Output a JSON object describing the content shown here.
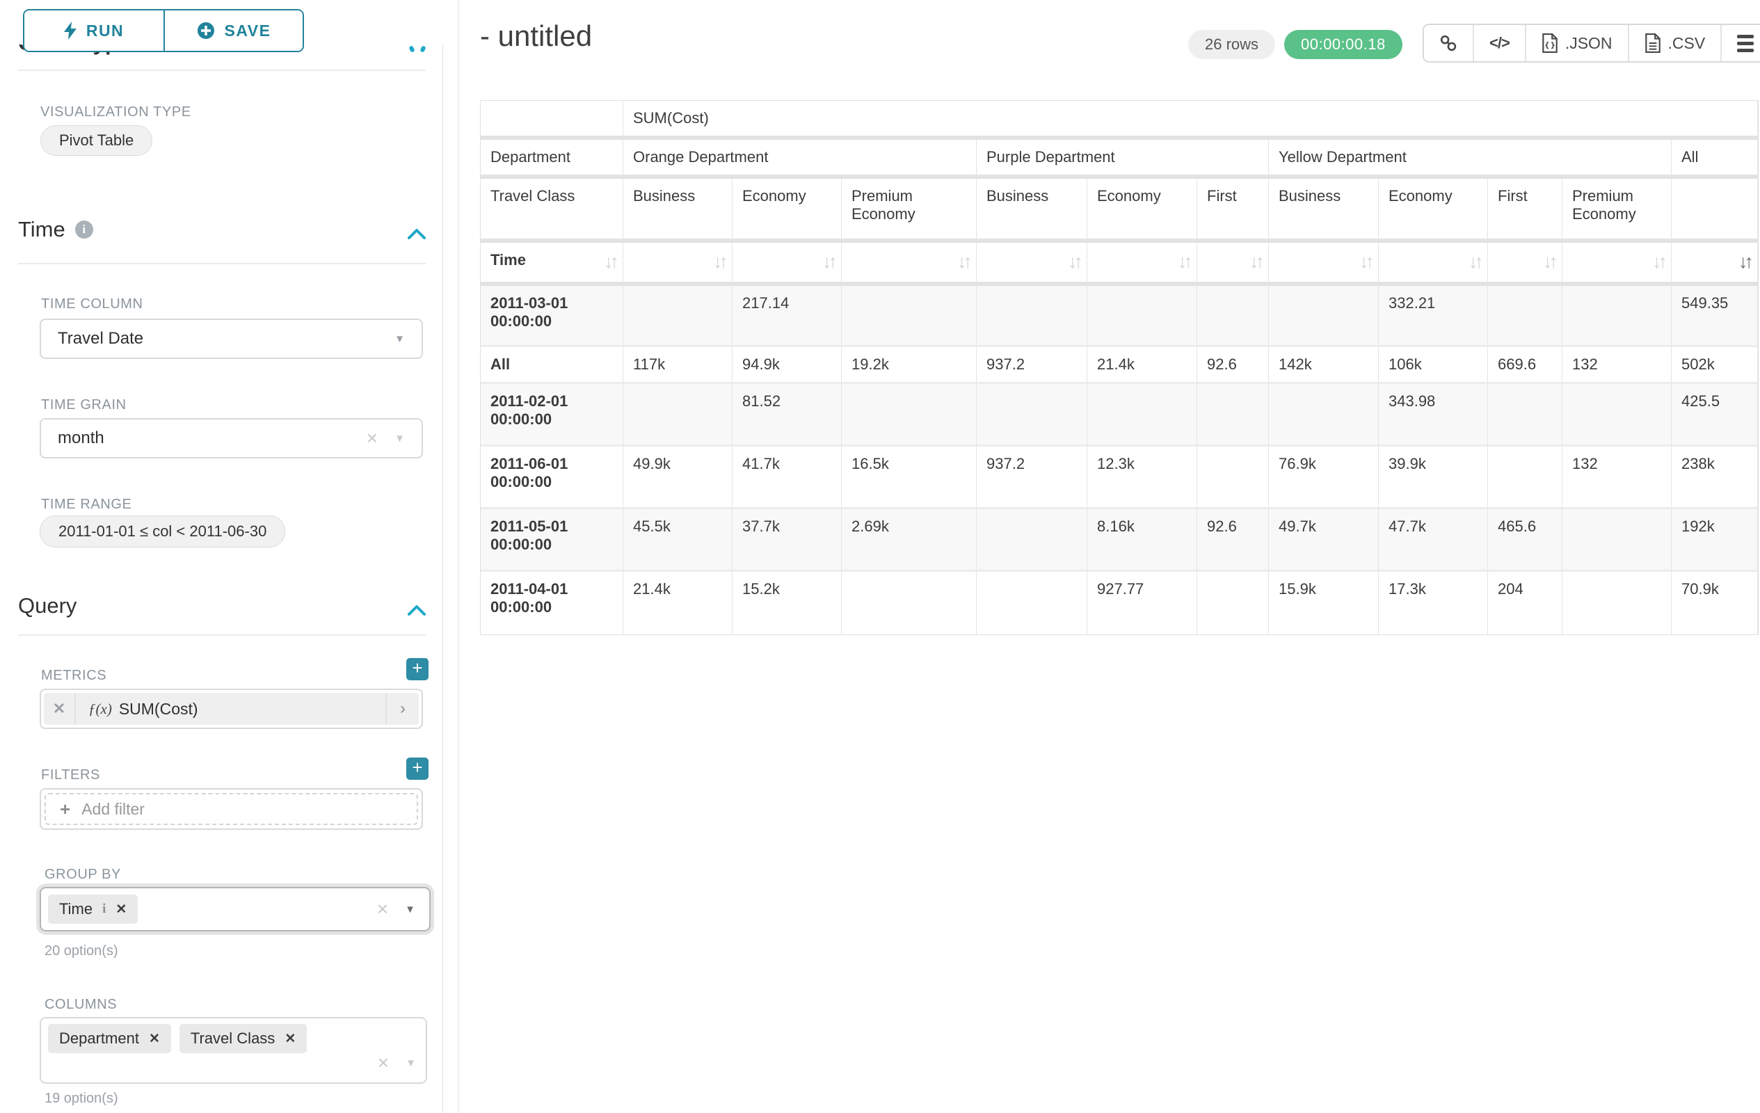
{
  "colors": {
    "accent_teal": "#20839b",
    "chevron_teal": "#1fa8c9",
    "success_green": "#5ac189",
    "chip_gray": "#f1f1f1"
  },
  "sidebar": {
    "run_label": "RUN",
    "save_label": "SAVE",
    "chart_type_heading": "Chart Type",
    "viz_type_label": "VISUALIZATION TYPE",
    "viz_type_value": "Pivot Table",
    "time_section_label": "Time",
    "time_column_label": "TIME COLUMN",
    "time_column_value": "Travel Date",
    "time_grain_label": "TIME GRAIN",
    "time_grain_value": "month",
    "time_range_label": "TIME RANGE",
    "time_range_value": "2011-01-01 ≤ col < 2011-06-30",
    "query_section_label": "Query",
    "metrics_label": "METRICS",
    "metric_fx": "ƒ(x)",
    "metric_value": "SUM(Cost)",
    "filters_label": "FILTERS",
    "add_filter_label": "Add filter",
    "group_by_label": "GROUP BY",
    "group_by_chips": [
      "Time"
    ],
    "group_by_hint": "20 option(s)",
    "columns_label": "COLUMNS",
    "columns_chips": [
      "Department",
      "Travel Class"
    ],
    "columns_hint": "19 option(s)"
  },
  "header": {
    "title": "- untitled",
    "rows_badge": "26 rows",
    "timer": "00:00:00.18",
    "json_label": ".JSON",
    "csv_label": ".CSV"
  },
  "pivot": {
    "corner_metric": "SUM(Cost)",
    "dim1_label": "Department",
    "dim2_label": "Travel Class",
    "time_label": "Time",
    "all_label": "All",
    "groups": [
      {
        "label": "Orange Department",
        "columns": [
          "Business",
          "Economy",
          "Premium Economy"
        ]
      },
      {
        "label": "Purple Department",
        "columns": [
          "Business",
          "Economy",
          "First"
        ]
      },
      {
        "label": "Yellow Department",
        "columns": [
          "Business",
          "Economy",
          "First",
          "Premium Economy"
        ]
      }
    ],
    "sort": {
      "active_column": "All",
      "direction": "desc"
    },
    "rows": [
      {
        "label": "2011-03-01 00:00:00",
        "values": [
          "",
          "217.14",
          "",
          "",
          "",
          "",
          "",
          "332.21",
          "",
          "",
          "549.35"
        ]
      },
      {
        "label": "All",
        "values": [
          "117k",
          "94.9k",
          "19.2k",
          "937.2",
          "21.4k",
          "92.6",
          "142k",
          "106k",
          "669.6",
          "132",
          "502k"
        ]
      },
      {
        "label": "2011-02-01 00:00:00",
        "values": [
          "",
          "81.52",
          "",
          "",
          "",
          "",
          "",
          "343.98",
          "",
          "",
          "425.5"
        ]
      },
      {
        "label": "2011-06-01 00:00:00",
        "values": [
          "49.9k",
          "41.7k",
          "16.5k",
          "937.2",
          "12.3k",
          "",
          "76.9k",
          "39.9k",
          "",
          "132",
          "238k"
        ]
      },
      {
        "label": "2011-05-01 00:00:00",
        "values": [
          "45.5k",
          "37.7k",
          "2.69k",
          "",
          "8.16k",
          "92.6",
          "49.7k",
          "47.7k",
          "465.6",
          "",
          "192k"
        ]
      },
      {
        "label": "2011-04-01 00:00:00",
        "values": [
          "21.4k",
          "15.2k",
          "",
          "",
          "927.77",
          "",
          "15.9k",
          "17.3k",
          "204",
          "",
          "70.9k"
        ]
      }
    ]
  }
}
